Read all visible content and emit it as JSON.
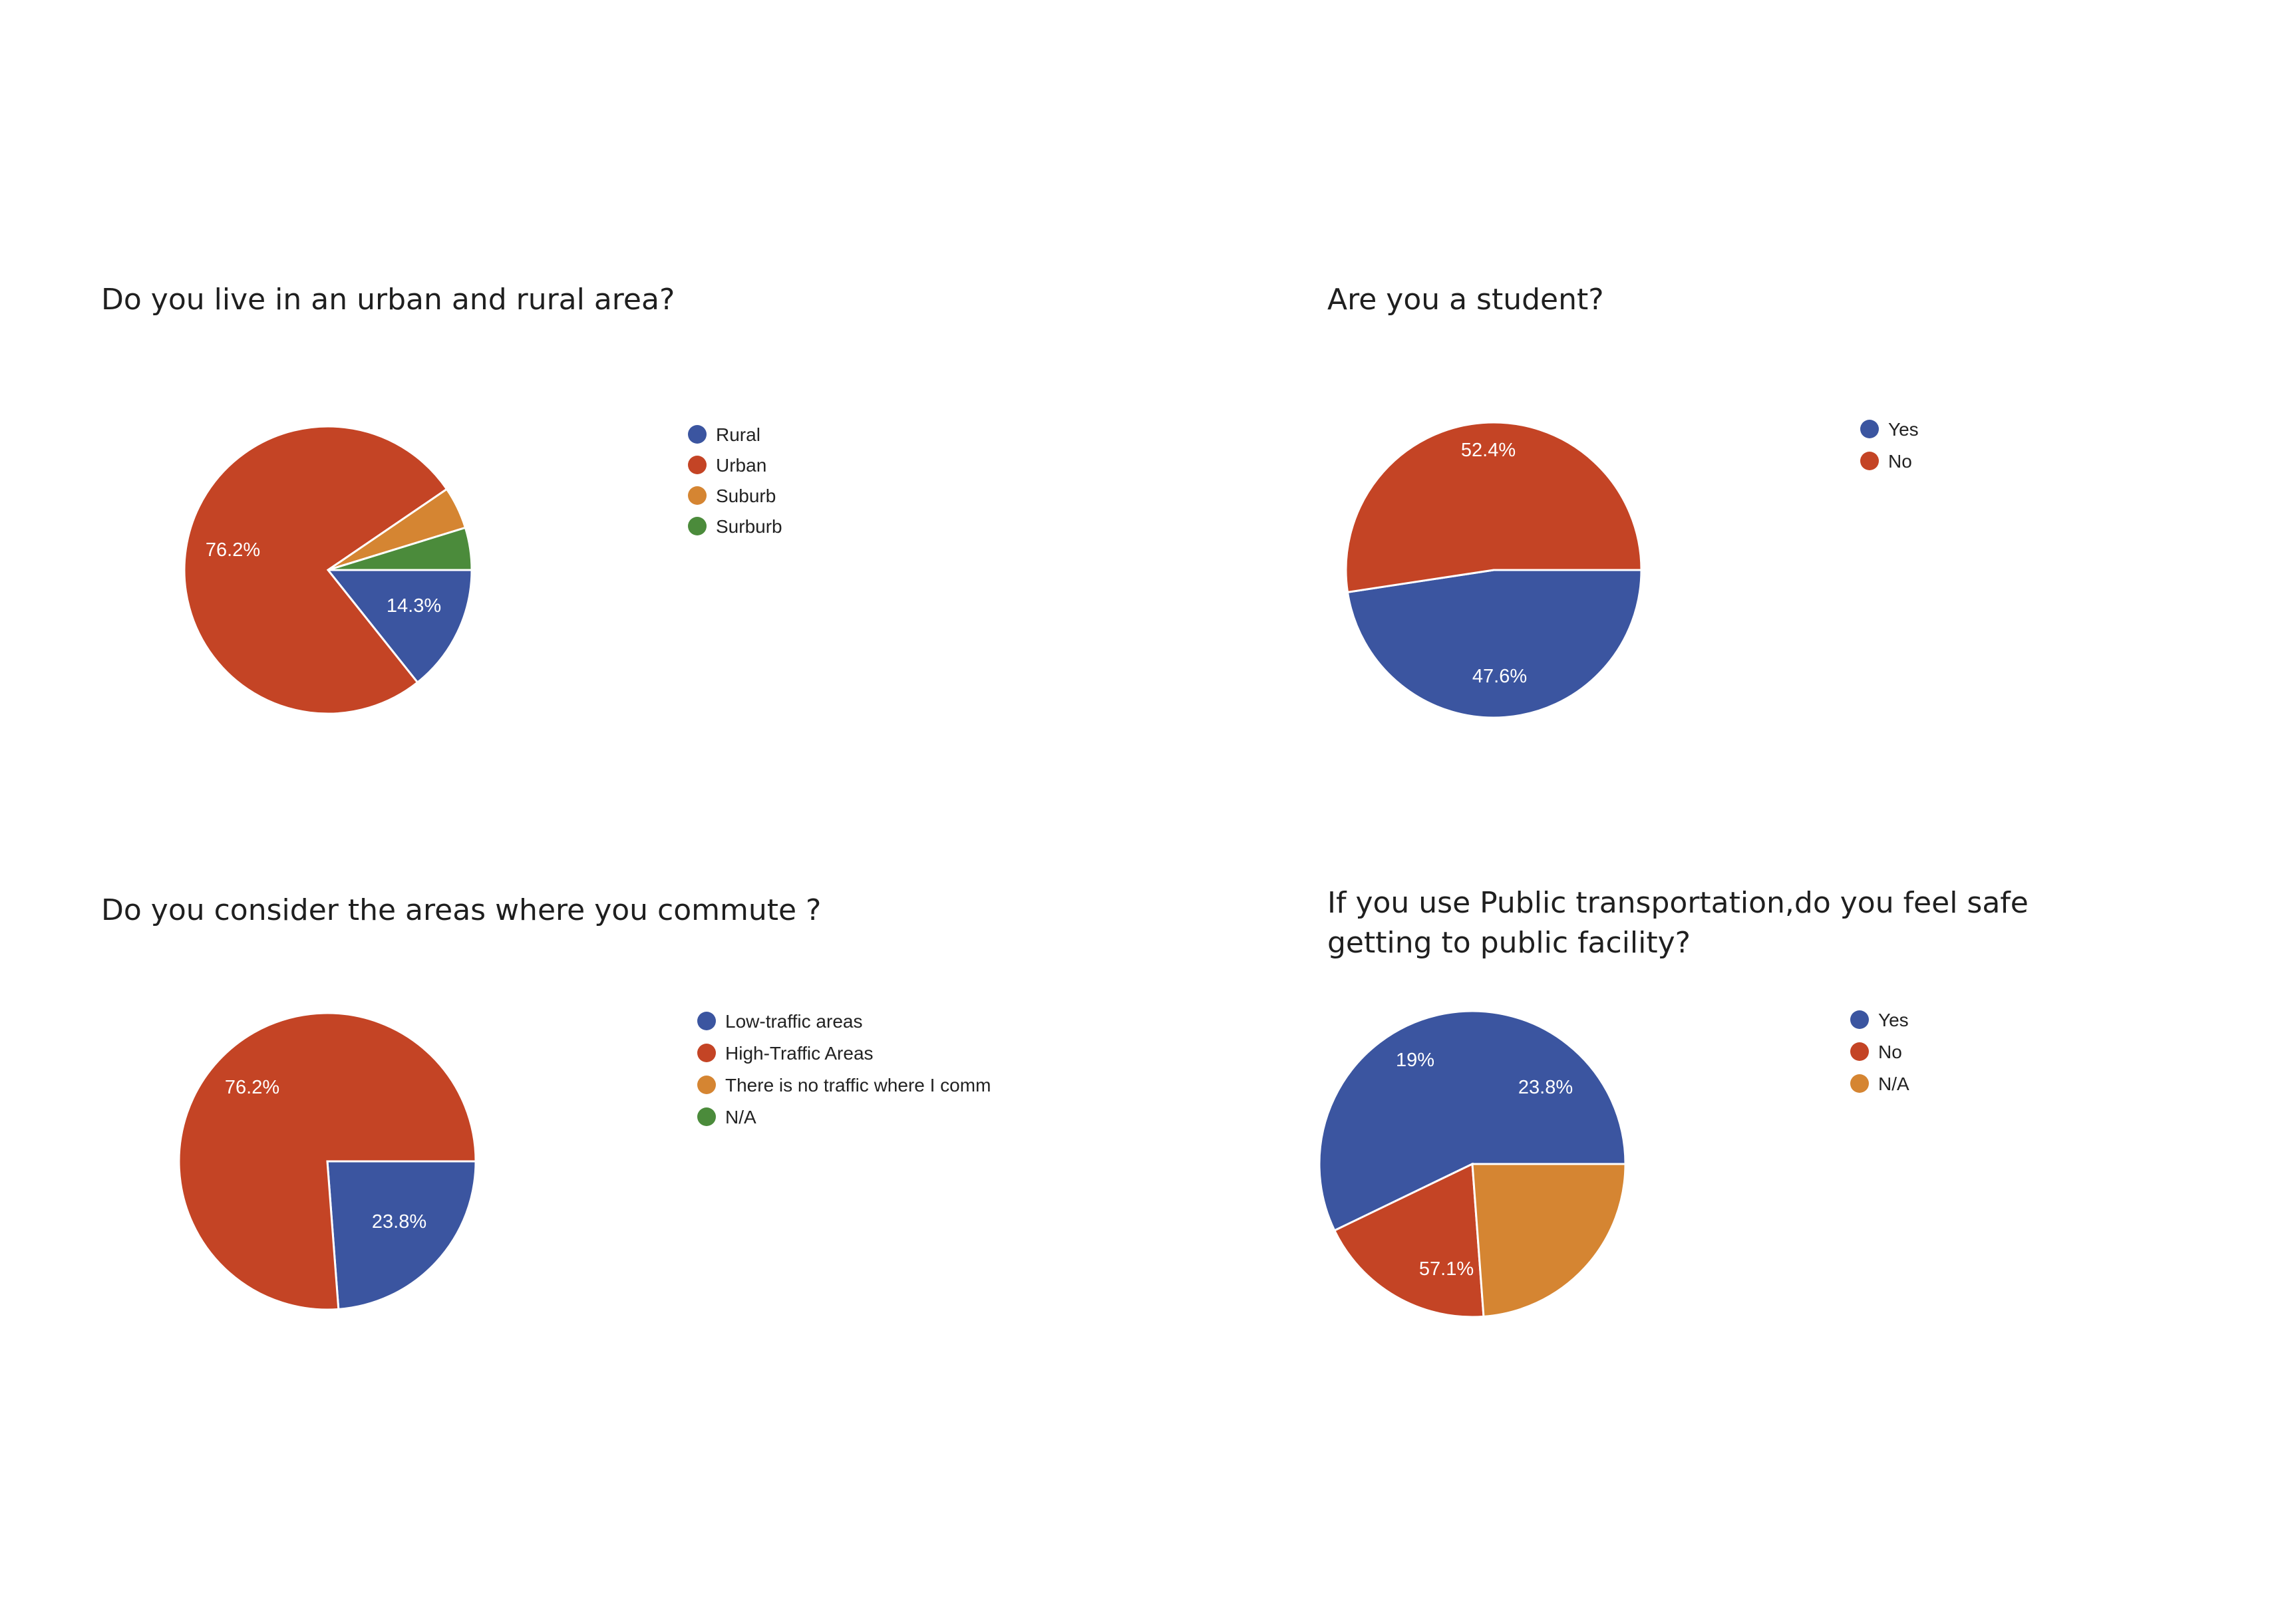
{
  "chart_data": [
    {
      "type": "pie",
      "title": "Do you live in an urban and rural area?",
      "categories": [
        "Rural",
        "Urban",
        "Suburb",
        "Surburb"
      ],
      "values": [
        14.3,
        76.2,
        4.76,
        4.76
      ],
      "slice_labels": [
        "14.3%",
        "76.2%",
        "",
        ""
      ],
      "colors": [
        "#3b55a0",
        "#c44425",
        "#d58532",
        "#4b8b3b"
      ],
      "legend_placement": "right"
    },
    {
      "type": "pie",
      "title": "Are you a student?",
      "categories": [
        "Yes",
        "No"
      ],
      "values": [
        47.6,
        52.4
      ],
      "slice_labels": [
        "47.6%",
        "52.4%"
      ],
      "colors": [
        "#3b55a0",
        "#c44425"
      ],
      "legend_placement": "right"
    },
    {
      "type": "pie",
      "title": "Do you consider the areas where you commute ?",
      "categories": [
        "Low-traffic areas",
        "High-Traffic Areas",
        "There is no traffic where I comm",
        "N/A"
      ],
      "values": [
        23.8,
        76.2,
        0,
        0
      ],
      "slice_labels": [
        "23.8%",
        "76.2%",
        "",
        ""
      ],
      "colors": [
        "#3b55a0",
        "#c44425",
        "#d58532",
        "#4b8b3b"
      ],
      "legend_placement": "right"
    },
    {
      "type": "pie",
      "title": [
        "If you use Public transportation,do you feel safe",
        "getting to public facility?"
      ],
      "categories": [
        "Yes",
        "No",
        "N/A"
      ],
      "values": [
        57.1,
        19,
        23.8
      ],
      "slice_labels": [
        "57.1%",
        "19%",
        "23.8%"
      ],
      "colors": [
        "#3b55a0",
        "#c44425",
        "#d58532"
      ],
      "legend_placement": "right"
    }
  ]
}
